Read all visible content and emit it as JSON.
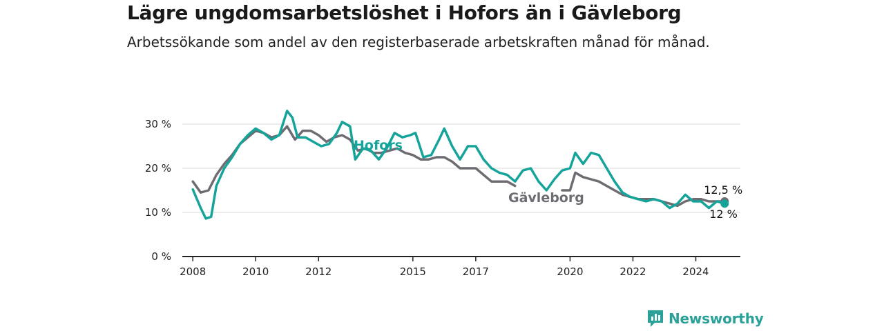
{
  "title": "Lägre ungdomsarbetslöshet i Hofors än i Gävleborg",
  "subtitle": "Arbetssökande som andel av den registerbaserade arbetskraften månad för månad.",
  "brand": {
    "name": "Newsworthy",
    "logo": "newsworthy-logo-icon"
  },
  "colors": {
    "hofors": "#15a39a",
    "gavleborg": "#6e6c72",
    "grid": "#d9d9d9",
    "axis": "#222222"
  },
  "chart_data": {
    "type": "line",
    "title": "Lägre ungdomsarbetslöshet i Hofors än i Gävleborg",
    "subtitle": "Arbetssökande som andel av den registerbaserade arbetskraften månad för månad.",
    "xlabel": "",
    "ylabel": "",
    "x_ticks": [
      "2008",
      "2010",
      "2012",
      "2015",
      "2017",
      "2020",
      "2022",
      "2024"
    ],
    "y_ticks": [
      "0 %",
      "10 %",
      "20 %",
      "30 %"
    ],
    "xlim": [
      "2007-09",
      "2025-06"
    ],
    "ylim": [
      0,
      30
    ],
    "grid": true,
    "series": [
      {
        "name": "Hofors",
        "color": "#15a39a",
        "end_label": "12 %",
        "points": [
          [
            "2008-01",
            15.2
          ],
          [
            "2008-04",
            11.0
          ],
          [
            "2008-06",
            8.6
          ],
          [
            "2008-08",
            9.0
          ],
          [
            "2008-10",
            16.0
          ],
          [
            "2009-01",
            20.0
          ],
          [
            "2009-04",
            22.5
          ],
          [
            "2009-07",
            25.5
          ],
          [
            "2009-10",
            27.5
          ],
          [
            "2010-01",
            29.0
          ],
          [
            "2010-04",
            28.0
          ],
          [
            "2010-07",
            26.5
          ],
          [
            "2010-10",
            27.5
          ],
          [
            "2011-01",
            33.0
          ],
          [
            "2011-03",
            31.5
          ],
          [
            "2011-05",
            27.0
          ],
          [
            "2011-08",
            27.0
          ],
          [
            "2011-11",
            26.0
          ],
          [
            "2012-02",
            25.0
          ],
          [
            "2012-05",
            25.5
          ],
          [
            "2012-08",
            28.0
          ],
          [
            "2012-10",
            30.5
          ],
          [
            "2013-01",
            29.5
          ],
          [
            "2013-03",
            22.0
          ],
          [
            "2013-06",
            24.5
          ],
          [
            "2013-09",
            24.0
          ],
          [
            "2013-12",
            22.0
          ],
          [
            "2014-03",
            24.5
          ],
          [
            "2014-06",
            28.0
          ],
          [
            "2014-09",
            27.0
          ],
          [
            "2014-12",
            27.5
          ],
          [
            "2015-02",
            28.0
          ],
          [
            "2015-05",
            22.5
          ],
          [
            "2015-08",
            23.0
          ],
          [
            "2015-11",
            26.5
          ],
          [
            "2016-01",
            29.0
          ],
          [
            "2016-04",
            25.0
          ],
          [
            "2016-07",
            22.0
          ],
          [
            "2016-10",
            25.0
          ],
          [
            "2017-01",
            25.0
          ],
          [
            "2017-04",
            22.0
          ],
          [
            "2017-07",
            20.0
          ],
          [
            "2017-10",
            19.0
          ],
          [
            "2018-01",
            18.5
          ],
          [
            "2018-04",
            17.0
          ],
          [
            "2018-07",
            19.5
          ],
          [
            "2018-10",
            20.0
          ],
          [
            "2019-01",
            17.0
          ],
          [
            "2019-04",
            15.0
          ],
          [
            "2019-07",
            17.5
          ],
          [
            "2019-10",
            19.5
          ],
          [
            "2020-01",
            20.0
          ],
          [
            "2020-03",
            23.5
          ],
          [
            "2020-06",
            21.0
          ],
          [
            "2020-09",
            23.5
          ],
          [
            "2020-12",
            23.0
          ],
          [
            "2021-03",
            20.0
          ],
          [
            "2021-06",
            17.0
          ],
          [
            "2021-09",
            14.5
          ],
          [
            "2021-12",
            13.5
          ],
          [
            "2022-03",
            13.0
          ],
          [
            "2022-06",
            12.5
          ],
          [
            "2022-09",
            13.0
          ],
          [
            "2022-12",
            12.5
          ],
          [
            "2023-03",
            11.0
          ],
          [
            "2023-06",
            12.0
          ],
          [
            "2023-09",
            14.0
          ],
          [
            "2023-12",
            12.5
          ],
          [
            "2024-03",
            12.5
          ],
          [
            "2024-06",
            11.0
          ],
          [
            "2024-09",
            12.5
          ],
          [
            "2024-12",
            12.0
          ]
        ]
      },
      {
        "name": "Gävleborg",
        "color": "#6e6c72",
        "end_label": "12,5 %",
        "points": [
          [
            "2008-01",
            17.0
          ],
          [
            "2008-04",
            14.5
          ],
          [
            "2008-07",
            15.0
          ],
          [
            "2008-10",
            18.5
          ],
          [
            "2009-01",
            21.0
          ],
          [
            "2009-04",
            23.0
          ],
          [
            "2009-07",
            25.5
          ],
          [
            "2009-10",
            27.0
          ],
          [
            "2010-01",
            28.5
          ],
          [
            "2010-04",
            28.0
          ],
          [
            "2010-07",
            27.0
          ],
          [
            "2010-10",
            27.5
          ],
          [
            "2011-01",
            29.5
          ],
          [
            "2011-04",
            26.5
          ],
          [
            "2011-07",
            28.5
          ],
          [
            "2011-10",
            28.5
          ],
          [
            "2012-01",
            27.5
          ],
          [
            "2012-04",
            26.0
          ],
          [
            "2012-07",
            27.0
          ],
          [
            "2012-10",
            27.5
          ],
          [
            "2013-01",
            26.5
          ],
          [
            "2013-04",
            24.0
          ],
          [
            "2013-07",
            24.5
          ],
          [
            "2013-10",
            23.5
          ],
          [
            "2014-01",
            23.5
          ],
          [
            "2014-04",
            24.0
          ],
          [
            "2014-07",
            24.5
          ],
          [
            "2014-10",
            23.5
          ],
          [
            "2015-01",
            23.0
          ],
          [
            "2015-04",
            22.0
          ],
          [
            "2015-07",
            22.0
          ],
          [
            "2015-10",
            22.5
          ],
          [
            "2016-01",
            22.5
          ],
          [
            "2016-04",
            21.5
          ],
          [
            "2016-07",
            20.0
          ],
          [
            "2016-10",
            20.0
          ],
          [
            "2017-01",
            20.0
          ],
          [
            "2017-04",
            18.5
          ],
          [
            "2017-07",
            17.0
          ],
          [
            "2017-10",
            17.0
          ],
          [
            "2018-01",
            17.0
          ],
          [
            "2018-04",
            16.0
          ],
          [
            "2019-10",
            15.0
          ],
          [
            "2020-01",
            15.0
          ],
          [
            "2020-03",
            19.0
          ],
          [
            "2020-06",
            18.0
          ],
          [
            "2020-09",
            17.5
          ],
          [
            "2020-12",
            17.0
          ],
          [
            "2021-03",
            16.0
          ],
          [
            "2021-06",
            15.0
          ],
          [
            "2021-09",
            14.0
          ],
          [
            "2021-12",
            13.5
          ],
          [
            "2022-03",
            13.0
          ],
          [
            "2022-06",
            13.0
          ],
          [
            "2022-09",
            13.0
          ],
          [
            "2022-12",
            12.5
          ],
          [
            "2023-03",
            12.0
          ],
          [
            "2023-06",
            11.5
          ],
          [
            "2023-09",
            12.5
          ],
          [
            "2023-12",
            13.0
          ],
          [
            "2024-03",
            13.0
          ],
          [
            "2024-06",
            12.5
          ],
          [
            "2024-09",
            12.5
          ],
          [
            "2024-12",
            12.5
          ]
        ]
      }
    ]
  }
}
